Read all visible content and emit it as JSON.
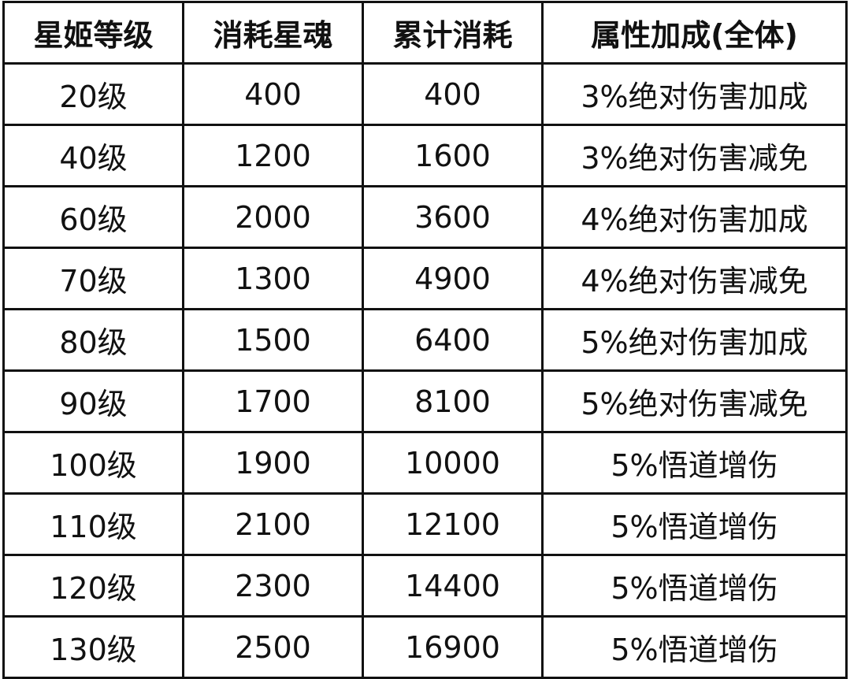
{
  "table": {
    "headers": [
      "星姬等级",
      "消耗星魂",
      "累计消耗",
      "属性加成(全体)"
    ],
    "rows": [
      [
        "20级",
        "400",
        "400",
        "3%绝对伤害加成"
      ],
      [
        "40级",
        "1200",
        "1600",
        "3%绝对伤害减免"
      ],
      [
        "60级",
        "2000",
        "3600",
        "4%绝对伤害加成"
      ],
      [
        "70级",
        "1300",
        "4900",
        "4%绝对伤害减免"
      ],
      [
        "80级",
        "1500",
        "6400",
        "5%绝对伤害加成"
      ],
      [
        "90级",
        "1700",
        "8100",
        "5%绝对伤害减免"
      ],
      [
        "100级",
        "1900",
        "10000",
        "5%悟道增伤"
      ],
      [
        "110级",
        "2100",
        "12100",
        "5%悟道增伤"
      ],
      [
        "120级",
        "2300",
        "14400",
        "5%悟道增伤"
      ],
      [
        "130级",
        "2500",
        "16900",
        "5%悟道增伤"
      ]
    ]
  }
}
